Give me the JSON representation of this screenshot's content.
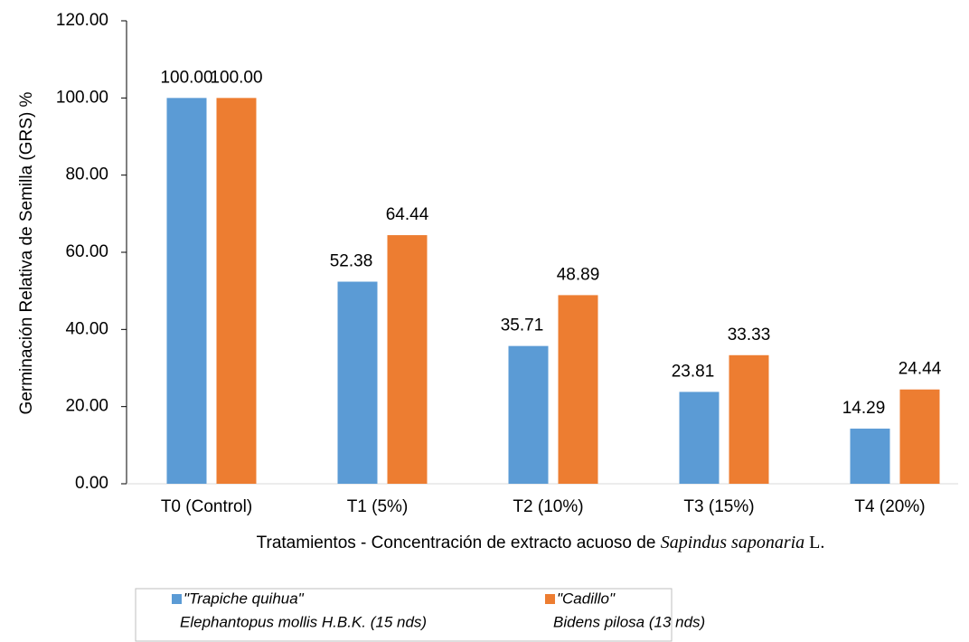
{
  "chart_data": {
    "type": "bar",
    "y_label": "Germinación Relativa de Semilla (GRS) %",
    "x_label": [
      "Tratamientos - Concentración de extracto acuoso de ",
      "Sapindus saponaria",
      " L."
    ],
    "categories": [
      "T0 (Control)",
      "T1 (5%)",
      "T2 (10%)",
      "T3 (15%)",
      "T4 (20%)"
    ],
    "series": [
      {
        "name": [
          "\"Trapiche quihua\"",
          "Elephantopus mollis H.B.K. (15 nds)"
        ],
        "color": "#5b9bd5",
        "values": [
          100,
          52.38,
          35.71,
          23.81,
          14.29
        ],
        "value_labels": [
          "100.00",
          "52.38",
          "35.71",
          "23.81",
          "14.29"
        ]
      },
      {
        "name": [
          "\"Cadillo\"",
          "Bidens pilosa (13 nds)"
        ],
        "color": "#ed7d31",
        "values": [
          100,
          64.44,
          48.89,
          33.33,
          24.44
        ],
        "value_labels": [
          "100.00",
          "64.44",
          "48.89",
          "33.33",
          "24.44"
        ]
      }
    ],
    "ylim": [
      0,
      120
    ],
    "yticks": [
      {
        "value": 0,
        "label": "0.00"
      },
      {
        "value": 20,
        "label": "20.00"
      },
      {
        "value": 40,
        "label": "40.00"
      },
      {
        "value": 60,
        "label": "60.00"
      },
      {
        "value": 80,
        "label": "80.00"
      },
      {
        "value": 100,
        "label": "100.00"
      },
      {
        "value": 120,
        "label": "120.00"
      }
    ],
    "legend": "bottom"
  }
}
